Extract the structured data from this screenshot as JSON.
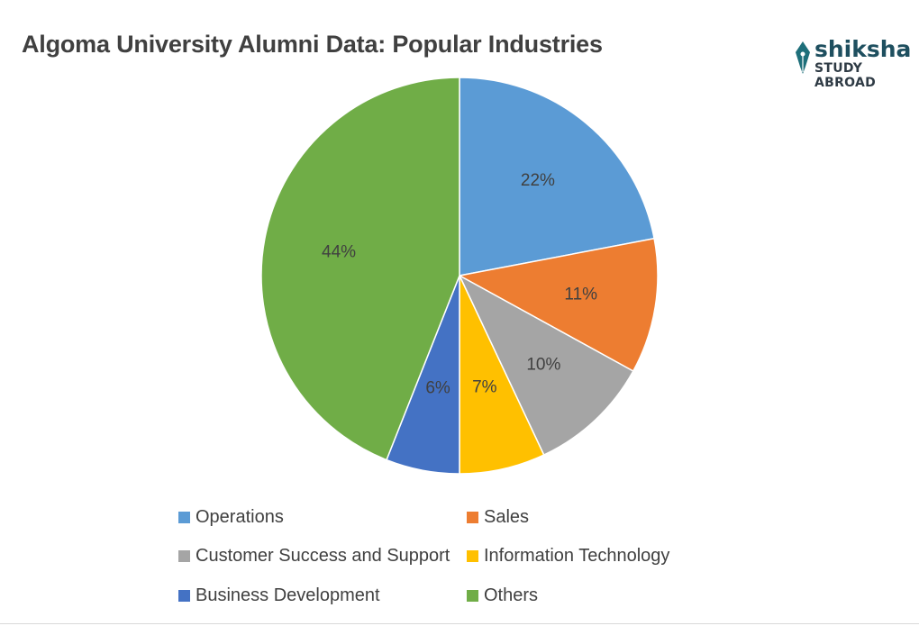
{
  "chart_data": {
    "type": "pie",
    "title": "Algoma University Alumni Data: Popular Industries",
    "categories": [
      "Operations",
      "Sales",
      "Customer Success and Support",
      "Information Technology",
      "Business Development",
      "Others"
    ],
    "values": [
      22,
      11,
      10,
      7,
      6,
      44
    ],
    "labels": [
      "22%",
      "11%",
      "10%",
      "7%",
      "6%",
      "44%"
    ],
    "colors": [
      "#5b9bd5",
      "#ed7d31",
      "#a5a5a5",
      "#ffc000",
      "#4472c4",
      "#70ad47"
    ],
    "legend_position": "bottom"
  },
  "logo": {
    "brand": "shiksha",
    "tagline": "STUDY ABROAD"
  }
}
